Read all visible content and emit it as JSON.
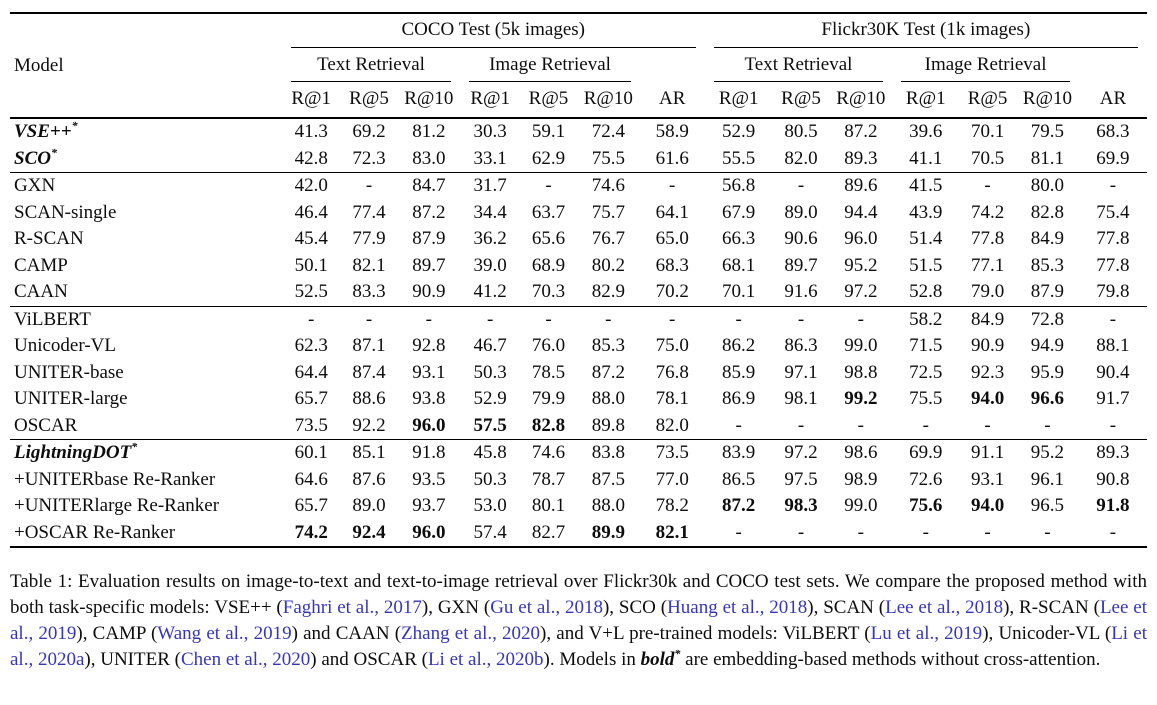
{
  "table": {
    "model_header": "Model",
    "groups": [
      {
        "label": "COCO Test (5k images)",
        "subgroups": [
          "Text Retrieval",
          "Image Retrieval"
        ]
      },
      {
        "label": "Flickr30K Test (1k images)",
        "subgroups": [
          "Text Retrieval",
          "Image Retrieval"
        ]
      }
    ],
    "metric_headers": [
      "R@1",
      "R@5",
      "R@10",
      "R@1",
      "R@5",
      "R@10",
      "AR",
      "R@1",
      "R@5",
      "R@10",
      "R@1",
      "R@5",
      "R@10",
      "AR"
    ],
    "row_groups": [
      {
        "rows": [
          {
            "model": "VSE++",
            "starred": true,
            "emph": true,
            "values": [
              "41.3",
              "69.2",
              "81.2",
              "30.3",
              "59.1",
              "72.4",
              "58.9",
              "52.9",
              "80.5",
              "87.2",
              "39.6",
              "70.1",
              "79.5",
              "68.3"
            ],
            "bold": []
          },
          {
            "model": "SCO",
            "starred": true,
            "emph": true,
            "values": [
              "42.8",
              "72.3",
              "83.0",
              "33.1",
              "62.9",
              "75.5",
              "61.6",
              "55.5",
              "82.0",
              "89.3",
              "41.1",
              "70.5",
              "81.1",
              "69.9"
            ],
            "bold": []
          }
        ]
      },
      {
        "rows": [
          {
            "model": "GXN",
            "starred": false,
            "emph": false,
            "values": [
              "42.0",
              "-",
              "84.7",
              "31.7",
              "-",
              "74.6",
              "-",
              "56.8",
              "-",
              "89.6",
              "41.5",
              "-",
              "80.0",
              "-"
            ],
            "bold": []
          },
          {
            "model": "SCAN-single",
            "starred": false,
            "emph": false,
            "values": [
              "46.4",
              "77.4",
              "87.2",
              "34.4",
              "63.7",
              "75.7",
              "64.1",
              "67.9",
              "89.0",
              "94.4",
              "43.9",
              "74.2",
              "82.8",
              "75.4"
            ],
            "bold": []
          },
          {
            "model": "R-SCAN",
            "starred": false,
            "emph": false,
            "values": [
              "45.4",
              "77.9",
              "87.9",
              "36.2",
              "65.6",
              "76.7",
              "65.0",
              "66.3",
              "90.6",
              "96.0",
              "51.4",
              "77.8",
              "84.9",
              "77.8"
            ],
            "bold": []
          },
          {
            "model": "CAMP",
            "starred": false,
            "emph": false,
            "values": [
              "50.1",
              "82.1",
              "89.7",
              "39.0",
              "68.9",
              "80.2",
              "68.3",
              "68.1",
              "89.7",
              "95.2",
              "51.5",
              "77.1",
              "85.3",
              "77.8"
            ],
            "bold": []
          },
          {
            "model": "CAAN",
            "starred": false,
            "emph": false,
            "values": [
              "52.5",
              "83.3",
              "90.9",
              "41.2",
              "70.3",
              "82.9",
              "70.2",
              "70.1",
              "91.6",
              "97.2",
              "52.8",
              "79.0",
              "87.9",
              "79.8"
            ],
            "bold": []
          }
        ]
      },
      {
        "rows": [
          {
            "model": "ViLBERT",
            "starred": false,
            "emph": false,
            "values": [
              "-",
              "-",
              "-",
              "-",
              "-",
              "-",
              "-",
              "-",
              "-",
              "-",
              "58.2",
              "84.9",
              "72.8",
              "-"
            ],
            "bold": []
          },
          {
            "model": "Unicoder-VL",
            "starred": false,
            "emph": false,
            "values": [
              "62.3",
              "87.1",
              "92.8",
              "46.7",
              "76.0",
              "85.3",
              "75.0",
              "86.2",
              "86.3",
              "99.0",
              "71.5",
              "90.9",
              "94.9",
              "88.1"
            ],
            "bold": []
          },
          {
            "model": "UNITER-base",
            "starred": false,
            "emph": false,
            "values": [
              "64.4",
              "87.4",
              "93.1",
              "50.3",
              "78.5",
              "87.2",
              "76.8",
              "85.9",
              "97.1",
              "98.8",
              "72.5",
              "92.3",
              "95.9",
              "90.4"
            ],
            "bold": []
          },
          {
            "model": "UNITER-large",
            "starred": false,
            "emph": false,
            "values": [
              "65.7",
              "88.6",
              "93.8",
              "52.9",
              "79.9",
              "88.0",
              "78.1",
              "86.9",
              "98.1",
              "99.2",
              "75.5",
              "94.0",
              "96.6",
              "91.7"
            ],
            "bold": [
              9,
              11,
              12
            ]
          },
          {
            "model": "OSCAR",
            "starred": false,
            "emph": false,
            "values": [
              "73.5",
              "92.2",
              "96.0",
              "57.5",
              "82.8",
              "89.8",
              "82.0",
              "-",
              "-",
              "-",
              "-",
              "-",
              "-",
              "-"
            ],
            "bold": [
              2,
              3,
              4
            ]
          }
        ]
      },
      {
        "rows": [
          {
            "model": "LightningDOT",
            "starred": true,
            "emph": true,
            "values": [
              "60.1",
              "85.1",
              "91.8",
              "45.8",
              "74.6",
              "83.8",
              "73.5",
              "83.9",
              "97.2",
              "98.6",
              "69.9",
              "91.1",
              "95.2",
              "89.3"
            ],
            "bold": []
          },
          {
            "model": "+UNITERbase Re-Ranker",
            "starred": false,
            "emph": false,
            "values": [
              "64.6",
              "87.6",
              "93.5",
              "50.3",
              "78.7",
              "87.5",
              "77.0",
              "86.5",
              "97.5",
              "98.9",
              "72.6",
              "93.1",
              "96.1",
              "90.8"
            ],
            "bold": []
          },
          {
            "model": "+UNITERlarge Re-Ranker",
            "starred": false,
            "emph": false,
            "values": [
              "65.7",
              "89.0",
              "93.7",
              "53.0",
              "80.1",
              "88.0",
              "78.2",
              "87.2",
              "98.3",
              "99.0",
              "75.6",
              "94.0",
              "96.5",
              "91.8"
            ],
            "bold": [
              7,
              8,
              10,
              11,
              13
            ]
          },
          {
            "model": "+OSCAR Re-Ranker",
            "starred": false,
            "emph": false,
            "values": [
              "74.2",
              "92.4",
              "96.0",
              "57.4",
              "82.7",
              "89.9",
              "82.1",
              "-",
              "-",
              "-",
              "-",
              "-",
              "-",
              "-"
            ],
            "bold": [
              0,
              1,
              2,
              5,
              6
            ]
          }
        ]
      }
    ]
  },
  "caption": {
    "segments": [
      {
        "text": "Table 1:  Evaluation results on image-to-text and text-to-image retrieval over Flickr30k and COCO test sets. We compare the proposed method with both task-specific models: VSE++ (",
        "style": "plain"
      },
      {
        "text": "Faghri et al., 2017",
        "style": "cite"
      },
      {
        "text": "), GXN (",
        "style": "plain"
      },
      {
        "text": "Gu et al., 2018",
        "style": "cite"
      },
      {
        "text": "), SCO (",
        "style": "plain"
      },
      {
        "text": "Huang et al., 2018",
        "style": "cite"
      },
      {
        "text": "), SCAN (",
        "style": "plain"
      },
      {
        "text": "Lee et al., 2018",
        "style": "cite"
      },
      {
        "text": "), R-SCAN (",
        "style": "plain"
      },
      {
        "text": "Lee et al., 2019",
        "style": "cite"
      },
      {
        "text": "), CAMP (",
        "style": "plain"
      },
      {
        "text": "Wang et al., 2019",
        "style": "cite"
      },
      {
        "text": ") and CAAN (",
        "style": "plain"
      },
      {
        "text": "Zhang et al., 2020",
        "style": "cite"
      },
      {
        "text": "), and V+L pre-trained models: ViLBERT (",
        "style": "plain"
      },
      {
        "text": "Lu et al., 2019",
        "style": "cite"
      },
      {
        "text": "), Unicoder-VL (",
        "style": "plain"
      },
      {
        "text": "Li et al., 2020a",
        "style": "cite"
      },
      {
        "text": "), UNITER (",
        "style": "plain"
      },
      {
        "text": "Chen et al., 2020",
        "style": "cite"
      },
      {
        "text": ") and OSCAR (",
        "style": "plain"
      },
      {
        "text": "Li et al., 2020b",
        "style": "cite"
      },
      {
        "text": "). Models in ",
        "style": "plain"
      },
      {
        "text": "bold",
        "style": "bolditalic"
      },
      {
        "text": "*",
        "style": "sup"
      },
      {
        "text": " are embedding-based methods without cross-attention.",
        "style": "plain"
      }
    ]
  }
}
